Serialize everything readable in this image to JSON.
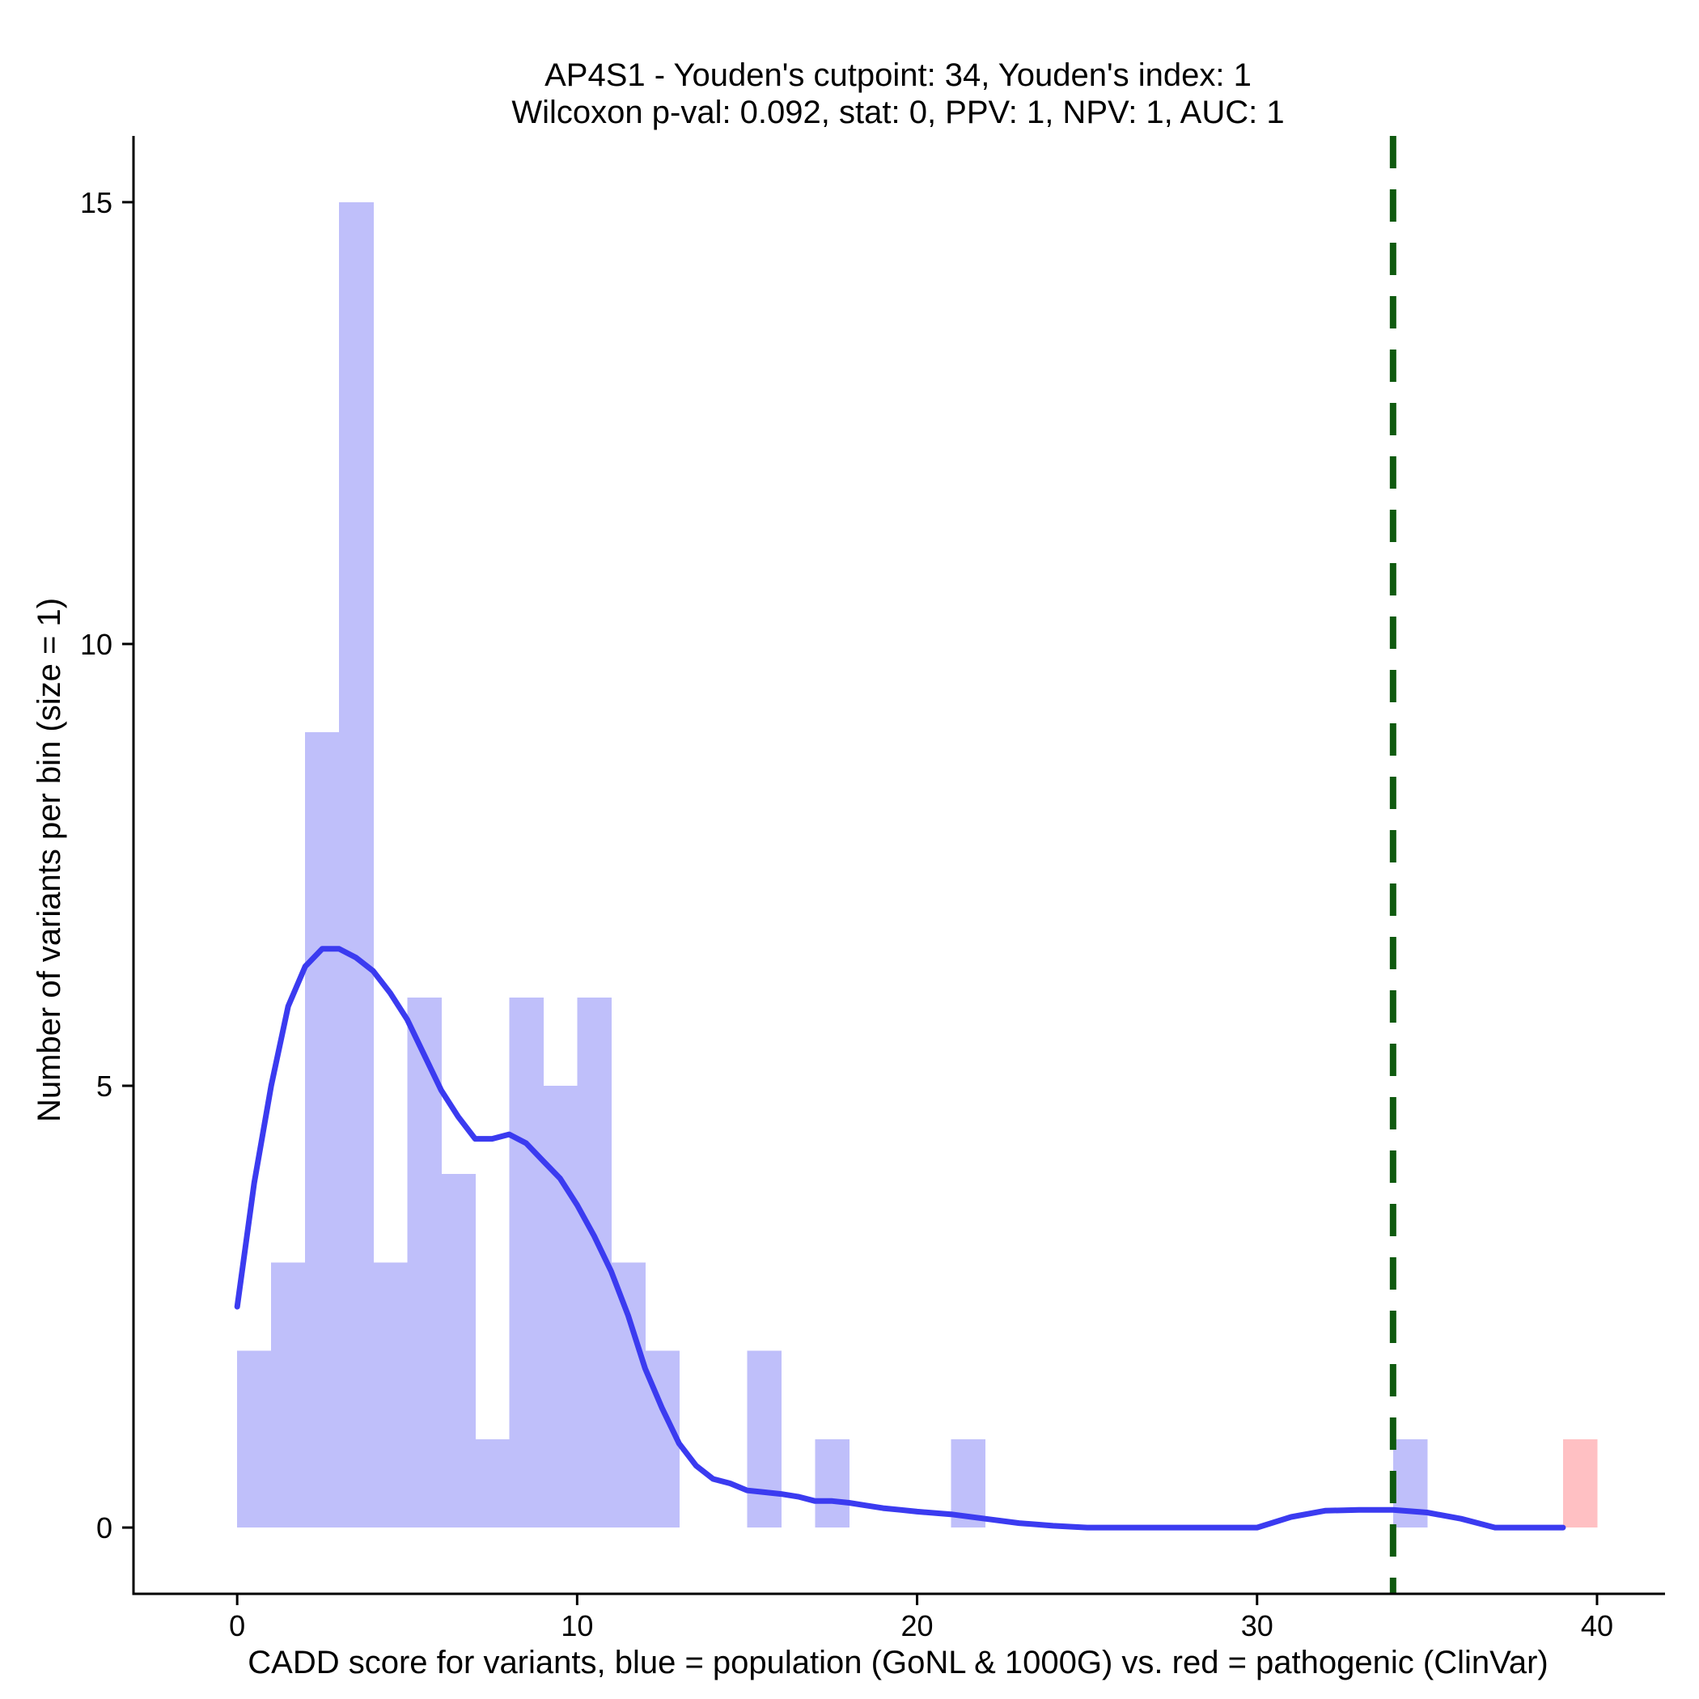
{
  "chart_data": {
    "type": "bar",
    "title": "AP4S1 - Youden's cutpoint: 34, Youden's index: 1",
    "subtitle": "Wilcoxon p-val: 0.092, stat: 0, PPV: 1, NPV: 1, AUC: 1",
    "xlabel": "CADD score for variants, blue = population (GoNL & 1000G) vs. red = pathogenic (ClinVar)",
    "ylabel": "Number of variants per bin (size = 1)",
    "xlim": [
      -3.05,
      42
    ],
    "ylim": [
      -0.75,
      15.75
    ],
    "xticks": [
      0,
      10,
      20,
      30,
      40
    ],
    "xtick_labels": [
      "0",
      "10",
      "20",
      "30",
      "40"
    ],
    "yticks": [
      0,
      5,
      10,
      15
    ],
    "ytick_labels": [
      "0",
      "5",
      "10",
      "15"
    ],
    "grid": false,
    "legend": "none",
    "bin_width": 1,
    "series": [
      {
        "color": "#bfbffa",
        "bins": [
          {
            "x0": 0,
            "count": 2
          },
          {
            "x0": 1,
            "count": 3
          },
          {
            "x0": 2,
            "count": 9
          },
          {
            "x0": 3,
            "count": 15
          },
          {
            "x0": 4,
            "count": 3
          },
          {
            "x0": 5,
            "count": 6
          },
          {
            "x0": 6,
            "count": 4
          },
          {
            "x0": 7,
            "count": 1
          },
          {
            "x0": 8,
            "count": 6
          },
          {
            "x0": 9,
            "count": 5
          },
          {
            "x0": 10,
            "count": 6
          },
          {
            "x0": 11,
            "count": 3
          },
          {
            "x0": 12,
            "count": 2
          },
          {
            "x0": 15,
            "count": 2
          },
          {
            "x0": 17,
            "count": 1
          },
          {
            "x0": 21,
            "count": 1
          },
          {
            "x0": 34,
            "count": 1
          }
        ]
      },
      {
        "color": "#ffc0c3",
        "bins": [
          {
            "x0": 39,
            "count": 1
          }
        ]
      }
    ],
    "density_curve": {
      "color": "#3b3bf0",
      "x": [
        0,
        0.5,
        1,
        1.5,
        2,
        2.5,
        3,
        3.5,
        4,
        4.5,
        5,
        5.5,
        6,
        6.5,
        7,
        7.5,
        8,
        8.5,
        9,
        9.5,
        10,
        10.5,
        11,
        11.5,
        12,
        12.5,
        13,
        13.5,
        14,
        14.5,
        15,
        15.5,
        16,
        16.5,
        17,
        17.5,
        18,
        18.5,
        19,
        19.5,
        20,
        21,
        22,
        23,
        24,
        25,
        25.5,
        26,
        27,
        28,
        29,
        30,
        31,
        32,
        33,
        34,
        35,
        36,
        37,
        38,
        39
      ],
      "y": [
        2.5,
        3.9,
        5.0,
        5.9,
        6.35,
        6.55,
        6.55,
        6.45,
        6.3,
        6.05,
        5.75,
        5.35,
        4.95,
        4.65,
        4.4,
        4.4,
        4.45,
        4.35,
        4.15,
        3.95,
        3.65,
        3.3,
        2.9,
        2.4,
        1.8,
        1.35,
        0.95,
        0.7,
        0.55,
        0.5,
        0.42,
        0.4,
        0.38,
        0.35,
        0.3,
        0.3,
        0.28,
        0.25,
        0.22,
        0.2,
        0.18,
        0.15,
        0.1,
        0.05,
        0.02,
        0.0,
        0.0,
        0.0,
        0.0,
        0.0,
        0.0,
        0.0,
        0.12,
        0.19,
        0.2,
        0.2,
        0.17,
        0.1,
        0.0,
        0.0,
        0.0
      ]
    },
    "cutpoint": {
      "x": 34,
      "color": "#0f5a0f",
      "style": "dashed"
    }
  }
}
